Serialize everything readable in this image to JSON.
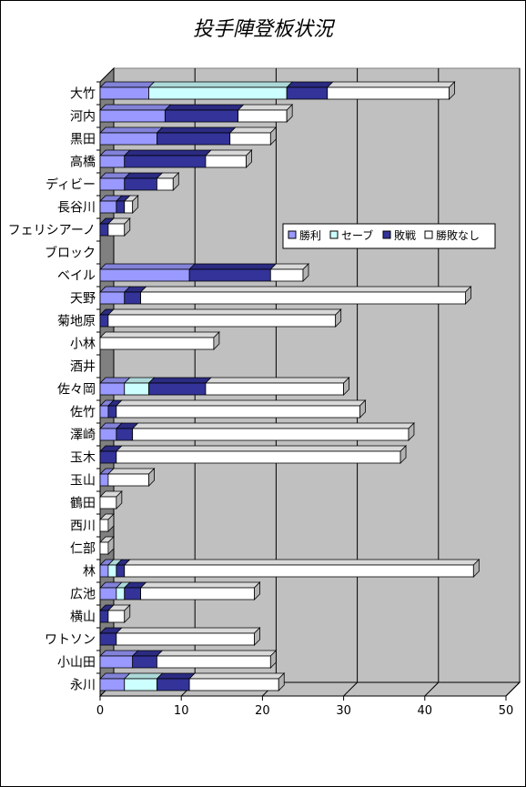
{
  "chart_data": {
    "type": "bar",
    "orientation": "horizontal",
    "stacked": true,
    "three_d": true,
    "title": "投手陣登板状況",
    "categories": [
      "大竹",
      "河内",
      "黒田",
      "高橋",
      "ディビー",
      "長谷川",
      "フェリシアーノ",
      "ブロック",
      "ベイル",
      "天野",
      "菊地原",
      "小林",
      "酒井",
      "佐々岡",
      "佐竹",
      "澤崎",
      "玉木",
      "玉山",
      "鶴田",
      "西川",
      "仁部",
      "林",
      "広池",
      "横山",
      "ワトソン",
      "小山田",
      "永川"
    ],
    "series": [
      {
        "name": "勝利",
        "color": "#9999ff",
        "values": [
          6,
          8,
          7,
          3,
          3,
          2,
          0,
          0,
          11,
          3,
          0,
          0,
          0,
          3,
          1,
          2,
          0,
          1,
          0,
          0,
          0,
          1,
          2,
          0,
          0,
          4,
          3
        ]
      },
      {
        "name": "セーブ",
        "color": "#ccffff",
        "values": [
          17,
          0,
          0,
          0,
          0,
          0,
          0,
          0,
          0,
          0,
          0,
          0,
          0,
          3,
          0,
          0,
          0,
          0,
          0,
          0,
          0,
          1,
          1,
          0,
          0,
          0,
          4
        ]
      },
      {
        "name": "敗戦",
        "color": "#333399",
        "values": [
          5,
          9,
          9,
          10,
          4,
          1,
          1,
          0,
          10,
          2,
          1,
          0,
          0,
          7,
          1,
          2,
          2,
          0,
          0,
          0,
          0,
          1,
          2,
          1,
          2,
          3,
          4
        ]
      },
      {
        "name": "勝敗なし",
        "color": "#ffffff",
        "values": [
          15,
          6,
          5,
          5,
          2,
          1,
          2,
          0,
          4,
          40,
          28,
          14,
          0,
          17,
          30,
          34,
          35,
          5,
          2,
          1,
          1,
          43,
          14,
          2,
          17,
          14,
          11
        ]
      }
    ],
    "xlim": [
      0,
      50
    ],
    "xticks": [
      0,
      10,
      20,
      30,
      40,
      50
    ],
    "grid": true,
    "legend_position": "right",
    "legend_direction": "horizontal"
  }
}
